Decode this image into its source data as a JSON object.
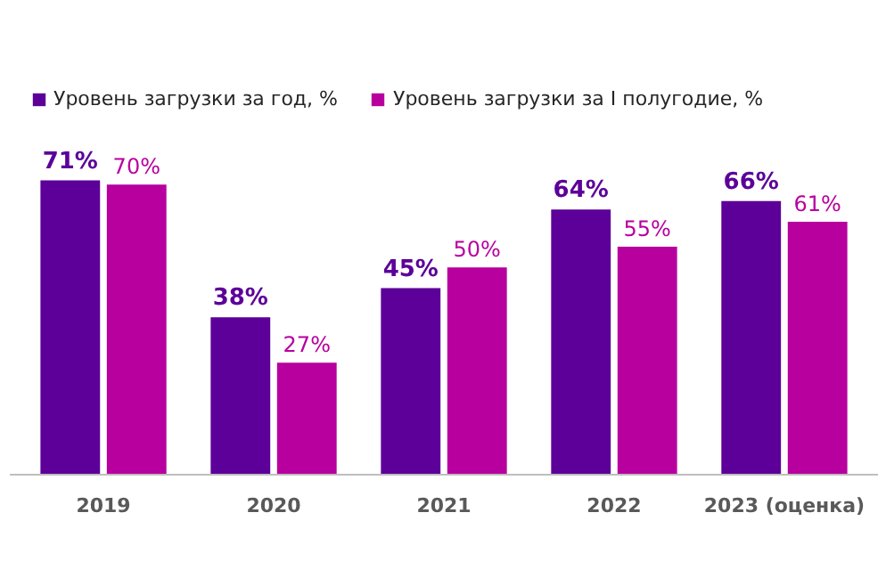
{
  "chart_data": {
    "type": "bar",
    "categories": [
      "2019",
      "2020",
      "2021",
      "2022",
      "2023 (оценка)"
    ],
    "series": [
      {
        "name": "Уровень загрузки за год, %",
        "color": "#5c0099",
        "values": [
          71,
          38,
          45,
          64,
          66
        ],
        "value_labels": [
          "71%",
          "38%",
          "45%",
          "64%",
          "66%"
        ]
      },
      {
        "name": "Уровень загрузки за I полугодие, %",
        "color": "#b8009e",
        "values": [
          70,
          27,
          50,
          55,
          61
        ],
        "value_labels": [
          "70%",
          "27%",
          "50%",
          "55%",
          "61%"
        ]
      }
    ],
    "legend": "top left",
    "grid": false
  }
}
